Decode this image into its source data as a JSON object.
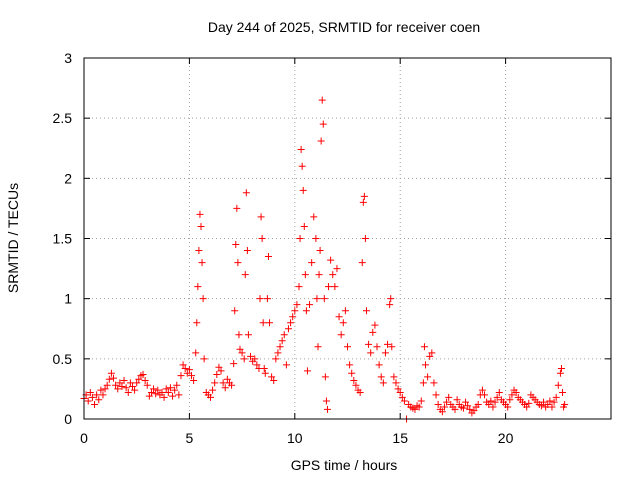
{
  "chart_data": {
    "type": "scatter",
    "title": "Day 244 of 2025, SRMTID for receiver coen",
    "xlabel": "GPS time / hours",
    "ylabel": "SRMTID / TECUs",
    "xlim": [
      0,
      25
    ],
    "ylim": [
      0,
      3
    ],
    "x_ticks": [
      0,
      5,
      10,
      15,
      20
    ],
    "x_tick_labels": [
      "0",
      "5",
      "10",
      "15",
      "20"
    ],
    "y_ticks": [
      0,
      0.5,
      1,
      1.5,
      2,
      2.5,
      3
    ],
    "y_tick_labels": [
      "0",
      "0.5",
      "1",
      "1.5",
      "2",
      "2.5",
      "3"
    ],
    "grid": true,
    "marker": "+",
    "series": [
      {
        "name": "SRMTID",
        "color": "#ff0000",
        "points": [
          [
            0.0,
            0.17
          ],
          [
            0.1,
            0.2
          ],
          [
            0.2,
            0.15
          ],
          [
            0.3,
            0.22
          ],
          [
            0.4,
            0.18
          ],
          [
            0.5,
            0.12
          ],
          [
            0.6,
            0.2
          ],
          [
            0.7,
            0.16
          ],
          [
            0.8,
            0.24
          ],
          [
            0.9,
            0.2
          ],
          [
            1.0,
            0.25
          ],
          [
            1.1,
            0.28
          ],
          [
            1.2,
            0.33
          ],
          [
            1.3,
            0.38
          ],
          [
            1.4,
            0.34
          ],
          [
            1.5,
            0.28
          ],
          [
            1.6,
            0.25
          ],
          [
            1.7,
            0.3
          ],
          [
            1.8,
            0.27
          ],
          [
            1.9,
            0.32
          ],
          [
            2.0,
            0.26
          ],
          [
            2.1,
            0.22
          ],
          [
            2.2,
            0.3
          ],
          [
            2.3,
            0.27
          ],
          [
            2.4,
            0.24
          ],
          [
            2.5,
            0.3
          ],
          [
            2.6,
            0.33
          ],
          [
            2.7,
            0.36
          ],
          [
            2.8,
            0.37
          ],
          [
            2.9,
            0.32
          ],
          [
            3.0,
            0.28
          ],
          [
            3.1,
            0.19
          ],
          [
            3.2,
            0.22
          ],
          [
            3.3,
            0.25
          ],
          [
            3.4,
            0.21
          ],
          [
            3.5,
            0.24
          ],
          [
            3.6,
            0.2
          ],
          [
            3.7,
            0.22
          ],
          [
            3.8,
            0.18
          ],
          [
            3.9,
            0.25
          ],
          [
            4.0,
            0.22
          ],
          [
            4.1,
            0.26
          ],
          [
            4.2,
            0.19
          ],
          [
            4.3,
            0.24
          ],
          [
            4.4,
            0.28
          ],
          [
            4.5,
            0.2
          ],
          [
            4.6,
            0.36
          ],
          [
            4.7,
            0.45
          ],
          [
            4.8,
            0.42
          ],
          [
            4.9,
            0.38
          ],
          [
            5.0,
            0.41
          ],
          [
            5.1,
            0.36
          ],
          [
            5.2,
            0.32
          ],
          [
            5.3,
            0.55
          ],
          [
            5.35,
            0.8
          ],
          [
            5.4,
            1.1
          ],
          [
            5.45,
            1.4
          ],
          [
            5.5,
            1.7
          ],
          [
            5.55,
            1.6
          ],
          [
            5.6,
            1.3
          ],
          [
            5.65,
            1.0
          ],
          [
            5.7,
            0.5
          ],
          [
            5.8,
            0.22
          ],
          [
            5.9,
            0.2
          ],
          [
            6.0,
            0.18
          ],
          [
            6.1,
            0.24
          ],
          [
            6.2,
            0.3
          ],
          [
            6.3,
            0.37
          ],
          [
            6.4,
            0.43
          ],
          [
            6.5,
            0.4
          ],
          [
            6.6,
            0.3
          ],
          [
            6.7,
            0.26
          ],
          [
            6.8,
            0.33
          ],
          [
            6.9,
            0.3
          ],
          [
            7.0,
            0.28
          ],
          [
            7.1,
            0.46
          ],
          [
            7.15,
            0.9
          ],
          [
            7.2,
            1.45
          ],
          [
            7.25,
            1.75
          ],
          [
            7.3,
            1.3
          ],
          [
            7.35,
            0.7
          ],
          [
            7.4,
            0.58
          ],
          [
            7.5,
            0.55
          ],
          [
            7.6,
            0.5
          ],
          [
            7.65,
            1.2
          ],
          [
            7.7,
            1.88
          ],
          [
            7.75,
            1.4
          ],
          [
            7.8,
            0.7
          ],
          [
            7.9,
            0.52
          ],
          [
            8.0,
            0.48
          ],
          [
            8.1,
            0.5
          ],
          [
            8.2,
            0.45
          ],
          [
            8.3,
            0.42
          ],
          [
            8.35,
            1.0
          ],
          [
            8.4,
            1.68
          ],
          [
            8.45,
            1.5
          ],
          [
            8.5,
            0.8
          ],
          [
            8.55,
            0.42
          ],
          [
            8.6,
            0.38
          ],
          [
            8.7,
            1.0
          ],
          [
            8.75,
            1.35
          ],
          [
            8.8,
            0.8
          ],
          [
            8.9,
            0.35
          ],
          [
            9.0,
            0.32
          ],
          [
            9.1,
            0.5
          ],
          [
            9.2,
            0.55
          ],
          [
            9.3,
            0.6
          ],
          [
            9.4,
            0.65
          ],
          [
            9.5,
            0.7
          ],
          [
            9.6,
            0.45
          ],
          [
            9.7,
            0.75
          ],
          [
            9.8,
            0.8
          ],
          [
            9.9,
            0.85
          ],
          [
            10.0,
            0.9
          ],
          [
            10.1,
            0.95
          ],
          [
            10.2,
            1.1
          ],
          [
            10.25,
            1.5
          ],
          [
            10.3,
            2.24
          ],
          [
            10.35,
            2.1
          ],
          [
            10.4,
            1.9
          ],
          [
            10.45,
            1.6
          ],
          [
            10.5,
            1.2
          ],
          [
            10.55,
            0.9
          ],
          [
            10.6,
            0.4
          ],
          [
            10.7,
            0.95
          ],
          [
            10.8,
            1.3
          ],
          [
            10.9,
            1.68
          ],
          [
            11.0,
            1.5
          ],
          [
            11.05,
            1.0
          ],
          [
            11.1,
            0.6
          ],
          [
            11.15,
            1.2
          ],
          [
            11.2,
            1.4
          ],
          [
            11.25,
            2.31
          ],
          [
            11.3,
            2.65
          ],
          [
            11.35,
            2.45
          ],
          [
            11.4,
            1.0
          ],
          [
            11.45,
            0.35
          ],
          [
            11.5,
            0.15
          ],
          [
            11.55,
            0.08
          ],
          [
            11.6,
            1.1
          ],
          [
            11.7,
            1.32
          ],
          [
            11.8,
            1.2
          ],
          [
            11.9,
            1.1
          ],
          [
            12.0,
            1.25
          ],
          [
            12.1,
            0.85
          ],
          [
            12.2,
            0.7
          ],
          [
            12.3,
            0.8
          ],
          [
            12.4,
            0.9
          ],
          [
            12.5,
            0.6
          ],
          [
            12.6,
            0.45
          ],
          [
            12.7,
            0.38
          ],
          [
            12.8,
            0.32
          ],
          [
            12.9,
            0.28
          ],
          [
            13.0,
            0.24
          ],
          [
            13.1,
            0.22
          ],
          [
            13.2,
            1.3
          ],
          [
            13.25,
            1.8
          ],
          [
            13.3,
            1.85
          ],
          [
            13.35,
            1.5
          ],
          [
            13.4,
            0.9
          ],
          [
            13.5,
            0.62
          ],
          [
            13.6,
            0.55
          ],
          [
            13.7,
            0.72
          ],
          [
            13.8,
            0.78
          ],
          [
            13.9,
            0.6
          ],
          [
            14.0,
            0.45
          ],
          [
            14.1,
            0.35
          ],
          [
            14.2,
            0.3
          ],
          [
            14.3,
            0.55
          ],
          [
            14.4,
            0.62
          ],
          [
            14.5,
            0.95
          ],
          [
            14.55,
            1.0
          ],
          [
            14.6,
            0.6
          ],
          [
            14.7,
            0.35
          ],
          [
            14.8,
            0.3
          ],
          [
            14.9,
            0.25
          ],
          [
            15.0,
            0.22
          ],
          [
            15.1,
            0.18
          ],
          [
            15.2,
            0.15
          ],
          [
            15.3,
            0.0
          ],
          [
            15.4,
            0.12
          ],
          [
            15.5,
            0.1
          ],
          [
            15.6,
            0.09
          ],
          [
            15.7,
            0.08
          ],
          [
            15.8,
            0.11
          ],
          [
            15.9,
            0.1
          ],
          [
            16.0,
            0.15
          ],
          [
            16.1,
            0.3
          ],
          [
            16.15,
            0.6
          ],
          [
            16.2,
            0.45
          ],
          [
            16.3,
            0.35
          ],
          [
            16.4,
            0.52
          ],
          [
            16.5,
            0.55
          ],
          [
            16.6,
            0.3
          ],
          [
            16.7,
            0.2
          ],
          [
            16.8,
            0.12
          ],
          [
            16.9,
            0.08
          ],
          [
            17.0,
            0.06
          ],
          [
            17.1,
            0.1
          ],
          [
            17.2,
            0.14
          ],
          [
            17.3,
            0.18
          ],
          [
            17.4,
            0.12
          ],
          [
            17.5,
            0.1
          ],
          [
            17.6,
            0.08
          ],
          [
            17.7,
            0.16
          ],
          [
            17.8,
            0.12
          ],
          [
            17.9,
            0.1
          ],
          [
            18.0,
            0.09
          ],
          [
            18.1,
            0.14
          ],
          [
            18.2,
            0.11
          ],
          [
            18.3,
            0.08
          ],
          [
            18.4,
            0.05
          ],
          [
            18.5,
            0.07
          ],
          [
            18.6,
            0.1
          ],
          [
            18.7,
            0.12
          ],
          [
            18.8,
            0.2
          ],
          [
            18.9,
            0.24
          ],
          [
            19.0,
            0.2
          ],
          [
            19.1,
            0.14
          ],
          [
            19.2,
            0.12
          ],
          [
            19.3,
            0.15
          ],
          [
            19.4,
            0.1
          ],
          [
            19.5,
            0.14
          ],
          [
            19.6,
            0.18
          ],
          [
            19.7,
            0.22
          ],
          [
            19.8,
            0.16
          ],
          [
            19.9,
            0.14
          ],
          [
            20.0,
            0.12
          ],
          [
            20.1,
            0.1
          ],
          [
            20.2,
            0.16
          ],
          [
            20.3,
            0.2
          ],
          [
            20.4,
            0.24
          ],
          [
            20.5,
            0.22
          ],
          [
            20.6,
            0.18
          ],
          [
            20.7,
            0.16
          ],
          [
            20.8,
            0.14
          ],
          [
            20.9,
            0.12
          ],
          [
            21.0,
            0.1
          ],
          [
            21.1,
            0.13
          ],
          [
            21.2,
            0.2
          ],
          [
            21.3,
            0.18
          ],
          [
            21.4,
            0.16
          ],
          [
            21.5,
            0.14
          ],
          [
            21.6,
            0.12
          ],
          [
            21.7,
            0.11
          ],
          [
            21.8,
            0.14
          ],
          [
            21.9,
            0.1
          ],
          [
            22.0,
            0.12
          ],
          [
            22.1,
            0.15
          ],
          [
            22.2,
            0.1
          ],
          [
            22.3,
            0.14
          ],
          [
            22.4,
            0.18
          ],
          [
            22.5,
            0.28
          ],
          [
            22.6,
            0.38
          ],
          [
            22.65,
            0.42
          ],
          [
            22.7,
            0.22
          ],
          [
            22.75,
            0.1
          ],
          [
            22.8,
            0.12
          ]
        ]
      }
    ]
  }
}
